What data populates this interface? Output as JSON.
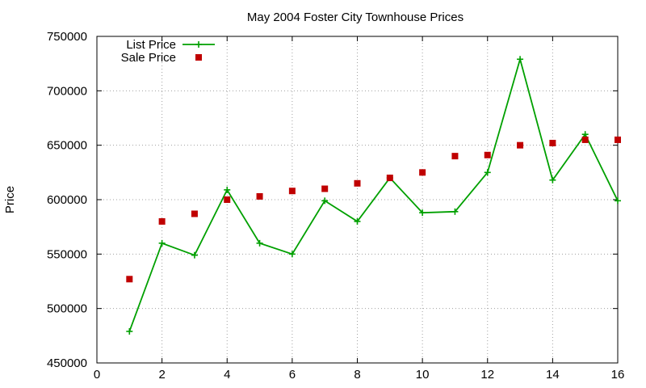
{
  "chart_data": {
    "type": "line",
    "title": "May 2004 Foster City Townhouse Prices",
    "xlabel": "",
    "ylabel": "Price",
    "xlim": [
      0,
      16
    ],
    "ylim": [
      450000,
      750000
    ],
    "x_ticks": [
      0,
      2,
      4,
      6,
      8,
      10,
      12,
      14,
      16
    ],
    "y_ticks": [
      450000,
      500000,
      550000,
      600000,
      650000,
      700000,
      750000
    ],
    "grid": true,
    "legend_position": "top-left",
    "series": [
      {
        "name": "List Price",
        "style": "line+cross",
        "color": "#00a000",
        "x": [
          1,
          2,
          3,
          4,
          5,
          6,
          7,
          8,
          9,
          10,
          11,
          12,
          13,
          14,
          15,
          16
        ],
        "values": [
          479000,
          560000,
          549000,
          609000,
          560000,
          550000,
          599000,
          580000,
          620000,
          588000,
          589000,
          625000,
          729000,
          618000,
          660000,
          599000
        ]
      },
      {
        "name": "Sale Price",
        "style": "square",
        "color": "#c00000",
        "x": [
          1,
          2,
          3,
          4,
          5,
          6,
          7,
          8,
          9,
          10,
          11,
          12,
          13,
          14,
          15,
          16
        ],
        "values": [
          527000,
          580000,
          587000,
          600000,
          603000,
          608000,
          610000,
          615000,
          620000,
          625000,
          640000,
          641000,
          650000,
          652000,
          655000,
          655000
        ]
      }
    ]
  }
}
